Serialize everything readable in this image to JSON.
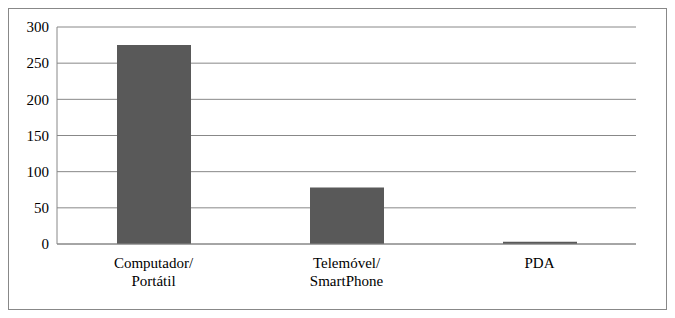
{
  "chart_data": {
    "type": "bar",
    "categories": [
      "Computador/ Portátil",
      "Telemóvel/ SmartPhone",
      "PDA"
    ],
    "values": [
      275,
      78,
      3
    ],
    "color": "#595959",
    "ylim": [
      0,
      300
    ],
    "yticks": [
      0,
      50,
      100,
      150,
      200,
      250,
      300
    ],
    "grid": true
  }
}
